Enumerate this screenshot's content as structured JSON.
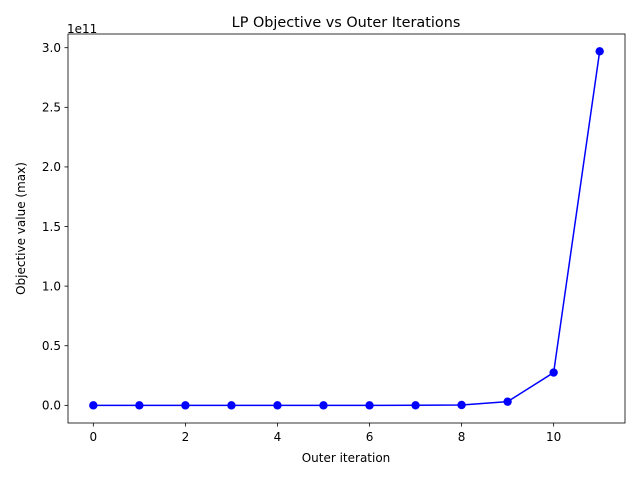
{
  "chart_data": {
    "type": "line",
    "title": "LP Objective vs Outer Iterations",
    "xlabel": "Outer iteration",
    "ylabel": "Objective value (max)",
    "y_offset_text": "1e11",
    "xlim": [
      -0.55,
      11.55
    ],
    "ylim": [
      -14800000000.0,
      311500000000.0
    ],
    "x_ticks": [
      0,
      2,
      4,
      6,
      8,
      10
    ],
    "x_tick_labels": [
      "0",
      "2",
      "4",
      "6",
      "8",
      "10"
    ],
    "y_ticks": [
      0,
      50000000000.0,
      100000000000.0,
      150000000000.0,
      200000000000.0,
      250000000000.0,
      300000000000.0
    ],
    "y_tick_labels": [
      "0.0",
      "0.5",
      "1.0",
      "1.5",
      "2.0",
      "2.5",
      "3.0"
    ],
    "grid": false,
    "series": [
      {
        "color": "#0000ff",
        "marker": "circle",
        "x": [
          0,
          1,
          2,
          3,
          4,
          5,
          6,
          7,
          8,
          9,
          10,
          11
        ],
        "y": [
          0,
          0,
          0,
          0,
          0,
          0,
          0,
          50000000.0,
          300000000.0,
          3100000000.0,
          27500000000.0,
          297000000000.0
        ]
      }
    ]
  }
}
